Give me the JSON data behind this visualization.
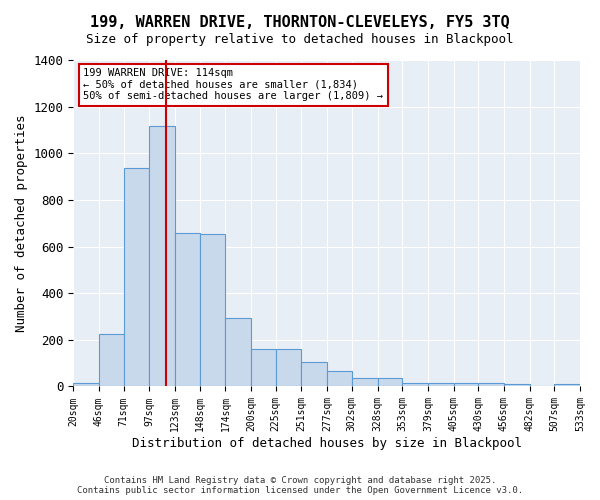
{
  "title": "199, WARREN DRIVE, THORNTON-CLEVELEYS, FY5 3TQ",
  "subtitle": "Size of property relative to detached houses in Blackpool",
  "xlabel": "Distribution of detached houses by size in Blackpool",
  "ylabel": "Number of detached properties",
  "bin_edges": [
    20,
    46,
    71,
    97,
    123,
    148,
    174,
    200,
    225,
    251,
    277,
    302,
    328,
    353,
    379,
    405,
    430,
    456,
    482,
    507,
    533
  ],
  "bar_heights": [
    15,
    225,
    935,
    1115,
    660,
    655,
    295,
    160,
    160,
    105,
    65,
    35,
    35,
    15,
    15,
    15,
    15,
    10,
    0,
    10
  ],
  "bar_color": "#c9d9ec",
  "bar_edgecolor": "#5b9bd5",
  "property_size": 114,
  "vline_color": "#cc0000",
  "annotation_title": "199 WARREN DRIVE: 114sqm",
  "annotation_line1": "← 50% of detached houses are smaller (1,834)",
  "annotation_line2": "50% of semi-detached houses are larger (1,809) →",
  "annotation_box_color": "#cc0000",
  "ylim": [
    0,
    1400
  ],
  "background_color": "#e8eef5",
  "footer_line1": "Contains HM Land Registry data © Crown copyright and database right 2025.",
  "footer_line2": "Contains public sector information licensed under the Open Government Licence v3.0."
}
